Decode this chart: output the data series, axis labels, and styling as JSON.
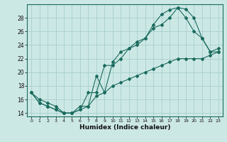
{
  "xlabel": "Humidex (Indice chaleur)",
  "bg_color": "#cce8e5",
  "line_color": "#1a6b5e",
  "grid_color": "#a8d0cd",
  "xlim": [
    -0.5,
    23.5
  ],
  "ylim": [
    13.5,
    30.0
  ],
  "xticks": [
    0,
    1,
    2,
    3,
    4,
    5,
    6,
    7,
    8,
    9,
    10,
    11,
    12,
    13,
    14,
    15,
    16,
    17,
    18,
    19,
    20,
    21,
    22,
    23
  ],
  "yticks": [
    14,
    16,
    18,
    20,
    22,
    24,
    26,
    28
  ],
  "line1": {
    "x": [
      0,
      1,
      2,
      3,
      4,
      5,
      6,
      7,
      8,
      9,
      10,
      11,
      12,
      13,
      14,
      15,
      16,
      17,
      18,
      19,
      20,
      21,
      22,
      23
    ],
    "y": [
      17.0,
      16.0,
      15.5,
      15.0,
      14.0,
      14.0,
      15.0,
      15.0,
      19.5,
      17.0,
      21.5,
      23.0,
      23.5,
      24.5,
      25.0,
      27.0,
      28.5,
      29.2,
      29.5,
      29.3,
      28.0,
      25.0,
      23.0,
      23.5
    ]
  },
  "line2": {
    "x": [
      0,
      1,
      2,
      3,
      4,
      5,
      6,
      7,
      8,
      9,
      10,
      11,
      12,
      13,
      14,
      15,
      16,
      17,
      18,
      19,
      20,
      21,
      22,
      23
    ],
    "y": [
      17.0,
      15.5,
      15.0,
      14.5,
      14.0,
      14.0,
      14.5,
      17.0,
      17.0,
      21.0,
      21.0,
      22.0,
      23.5,
      24.0,
      25.0,
      26.5,
      27.0,
      28.0,
      29.5,
      28.0,
      26.0,
      25.0,
      23.0,
      23.0
    ]
  },
  "line3": {
    "x": [
      0,
      1,
      2,
      3,
      4,
      5,
      6,
      7,
      8,
      9,
      10,
      11,
      12,
      13,
      14,
      15,
      16,
      17,
      18,
      19,
      20,
      21,
      22,
      23
    ],
    "y": [
      17.0,
      15.5,
      15.0,
      14.5,
      14.0,
      14.0,
      14.5,
      15.0,
      16.5,
      17.0,
      18.0,
      18.5,
      19.0,
      19.5,
      20.0,
      20.5,
      21.0,
      21.5,
      22.0,
      22.0,
      22.0,
      22.0,
      22.5,
      23.0
    ]
  }
}
